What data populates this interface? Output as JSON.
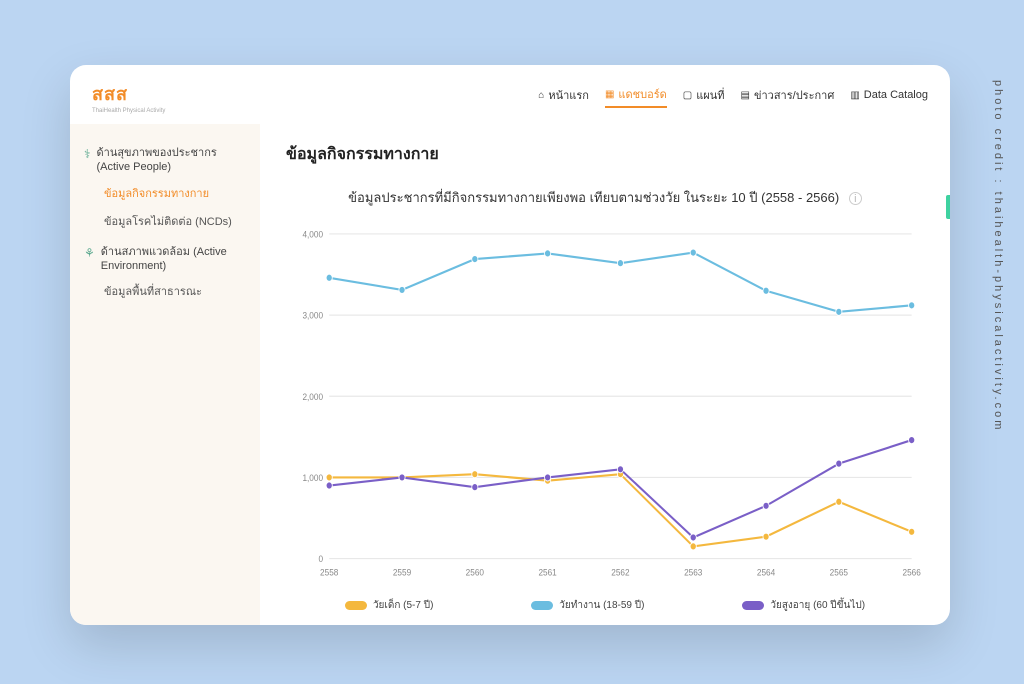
{
  "credit_text": "photo credit : thaihealth-physicalactivity.com",
  "logo": {
    "text": "สสส",
    "sub": "ThaiHealth Physical Activity"
  },
  "nav": [
    {
      "label": "หน้าแรก",
      "icon": "⌂",
      "active": false
    },
    {
      "label": "แดชบอร์ด",
      "icon": "▦",
      "active": true
    },
    {
      "label": "แผนที่",
      "icon": "▢",
      "active": false
    },
    {
      "label": "ข่าวสาร/ประกาศ",
      "icon": "▤",
      "active": false
    },
    {
      "label": "Data Catalog",
      "icon": "▥",
      "active": false
    }
  ],
  "sidebar": {
    "groups": [
      {
        "icon": "⚕",
        "heading": "ด้านสุขภาพของประชากร (Active People)",
        "subs": [
          {
            "label": "ข้อมูลกิจกรรมทางกาย",
            "active": true
          },
          {
            "label": "ข้อมูลโรคไม่ติดต่อ (NCDs)",
            "active": false
          }
        ]
      },
      {
        "icon": "⚘",
        "heading": "ด้านสภาพแวดล้อม (Active Environment)",
        "subs": [
          {
            "label": "ข้อมูลพื้นที่สาธารณะ",
            "active": false
          }
        ]
      }
    ]
  },
  "page_title": "ข้อมูลกิจกรรมทางกาย",
  "chart": {
    "title": "ข้อมูลประชากรที่มีกิจกรรมทางกายเพียงพอ เทียบตามช่วงวัย ในระยะ 10 ปี (2558 - 2566)",
    "type": "line",
    "background_color": "#ffffff",
    "grid_color": "#e8e8e8",
    "axis_label_color": "#888888",
    "axis_fontsize": 8,
    "x": {
      "categories": [
        "2558",
        "2559",
        "2560",
        "2561",
        "2562",
        "2563",
        "2564",
        "2565",
        "2566"
      ]
    },
    "y": {
      "min": 0,
      "max": 4000,
      "step": 1000
    },
    "series": [
      {
        "name": "วัยเด็ก (5-7 ปี)",
        "color": "#f4b83e",
        "marker": "circle",
        "values": [
          1000,
          1000,
          1040,
          960,
          1040,
          150,
          270,
          700,
          330
        ]
      },
      {
        "name": "วัยทำงาน (18-59 ปี)",
        "color": "#6bbde0",
        "marker": "circle",
        "values": [
          3460,
          3310,
          3690,
          3760,
          3640,
          3770,
          3300,
          3040,
          3120
        ]
      },
      {
        "name": "วัยสูงอายุ (60 ปีขึ้นไป)",
        "color": "#7a5fc7",
        "marker": "circle",
        "values": [
          900,
          1000,
          880,
          1000,
          1100,
          260,
          650,
          1170,
          1460
        ]
      }
    ],
    "line_width": 1.8,
    "marker_size": 3
  }
}
